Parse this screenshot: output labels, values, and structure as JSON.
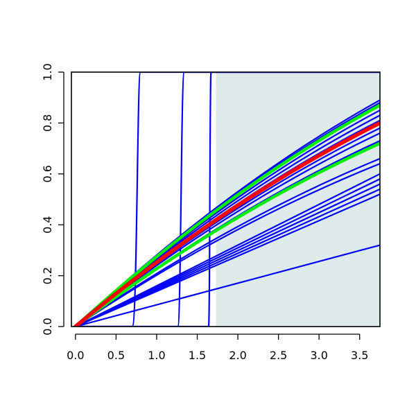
{
  "chart_data": {
    "type": "line",
    "title": "",
    "xlabel": "",
    "ylabel": "",
    "xlim": [
      -0.05,
      3.75
    ],
    "ylim": [
      0,
      1
    ],
    "x_ticks": [
      0.0,
      0.5,
      1.0,
      1.5,
      2.0,
      2.5,
      3.0,
      3.5
    ],
    "x_tick_labels": [
      "0.0",
      "0.5",
      "1.0",
      "1.5",
      "2.0",
      "2.5",
      "3.0",
      "3.5"
    ],
    "y_ticks": [
      0.0,
      0.2,
      0.4,
      0.6,
      0.8,
      1.0
    ],
    "y_tick_labels": [
      "0.0",
      "0.2",
      "0.4",
      "0.6",
      "0.8",
      "1.0"
    ],
    "grid": false,
    "legend": "none",
    "shaded_region": {
      "x": [
        1.73,
        3.75
      ],
      "y": [
        0,
        1
      ],
      "color": "#dfeaea"
    },
    "colors": {
      "blue": "#0000ff",
      "green": "#00ee00",
      "red": "#ff0000"
    },
    "series": [
      {
        "color": "blue",
        "kind": "step",
        "x": [
          0.0,
          0.7,
          0.76,
          0.8,
          3.75
        ],
        "y": [
          0.0,
          0.0,
          0.5,
          1.0,
          1.0
        ]
      },
      {
        "color": "blue",
        "kind": "step",
        "x": [
          0.0,
          1.26,
          1.3,
          1.34,
          3.75
        ],
        "y": [
          0.0,
          0.0,
          0.5,
          1.0,
          1.0
        ]
      },
      {
        "color": "blue",
        "kind": "step",
        "x": [
          0.0,
          1.64,
          1.655,
          1.67,
          3.75
        ],
        "y": [
          0.0,
          0.0,
          0.5,
          1.0,
          1.0
        ]
      },
      {
        "color": "blue",
        "kind": "line",
        "x": [
          0.0,
          3.75
        ],
        "y": [
          0.0,
          0.32
        ]
      },
      {
        "color": "blue",
        "kind": "line",
        "x": [
          0.0,
          3.75
        ],
        "y": [
          0.0,
          0.52
        ]
      },
      {
        "color": "blue",
        "kind": "line",
        "x": [
          0.0,
          3.75
        ],
        "y": [
          0.0,
          0.54
        ]
      },
      {
        "color": "blue",
        "kind": "line",
        "x": [
          0.0,
          3.75
        ],
        "y": [
          0.0,
          0.56
        ]
      },
      {
        "color": "blue",
        "kind": "line",
        "x": [
          0.0,
          3.75
        ],
        "y": [
          0.0,
          0.58
        ]
      },
      {
        "color": "blue",
        "kind": "line",
        "x": [
          0.0,
          3.75
        ],
        "y": [
          0.0,
          0.6
        ]
      },
      {
        "color": "blue",
        "kind": "curve",
        "x": [
          0.0,
          3.75
        ],
        "y": [
          0.0,
          0.64
        ]
      },
      {
        "color": "blue",
        "kind": "curve",
        "x": [
          0.0,
          3.75
        ],
        "y": [
          0.0,
          0.66
        ]
      },
      {
        "color": "blue",
        "kind": "curve",
        "x": [
          0.0,
          3.75
        ],
        "y": [
          0.0,
          0.73
        ]
      },
      {
        "color": "blue",
        "kind": "curve",
        "x": [
          0.0,
          3.75
        ],
        "y": [
          0.0,
          0.76
        ]
      },
      {
        "color": "blue",
        "kind": "curve",
        "x": [
          0.0,
          3.75
        ],
        "y": [
          0.0,
          0.78
        ]
      },
      {
        "color": "blue",
        "kind": "curve",
        "x": [
          0.0,
          3.75
        ],
        "y": [
          0.0,
          0.81
        ]
      },
      {
        "color": "blue",
        "kind": "curve",
        "x": [
          0.0,
          3.75
        ],
        "y": [
          0.0,
          0.83
        ]
      },
      {
        "color": "blue",
        "kind": "curve",
        "x": [
          0.0,
          3.75
        ],
        "y": [
          0.0,
          0.85
        ]
      },
      {
        "color": "blue",
        "kind": "curve",
        "x": [
          0.0,
          3.75
        ],
        "y": [
          0.0,
          0.88
        ]
      },
      {
        "color": "blue",
        "kind": "curve",
        "x": [
          0.0,
          3.75
        ],
        "y": [
          0.0,
          0.89
        ]
      },
      {
        "color": "green",
        "kind": "curve",
        "x": [
          0.0,
          3.75
        ],
        "y": [
          0.0,
          0.72
        ]
      },
      {
        "color": "green",
        "kind": "curve",
        "x": [
          0.0,
          3.75
        ],
        "y": [
          0.0,
          0.87
        ]
      },
      {
        "color": "red",
        "kind": "curve",
        "x": [
          0.0,
          3.75
        ],
        "y": [
          0.0,
          0.8
        ]
      }
    ]
  }
}
